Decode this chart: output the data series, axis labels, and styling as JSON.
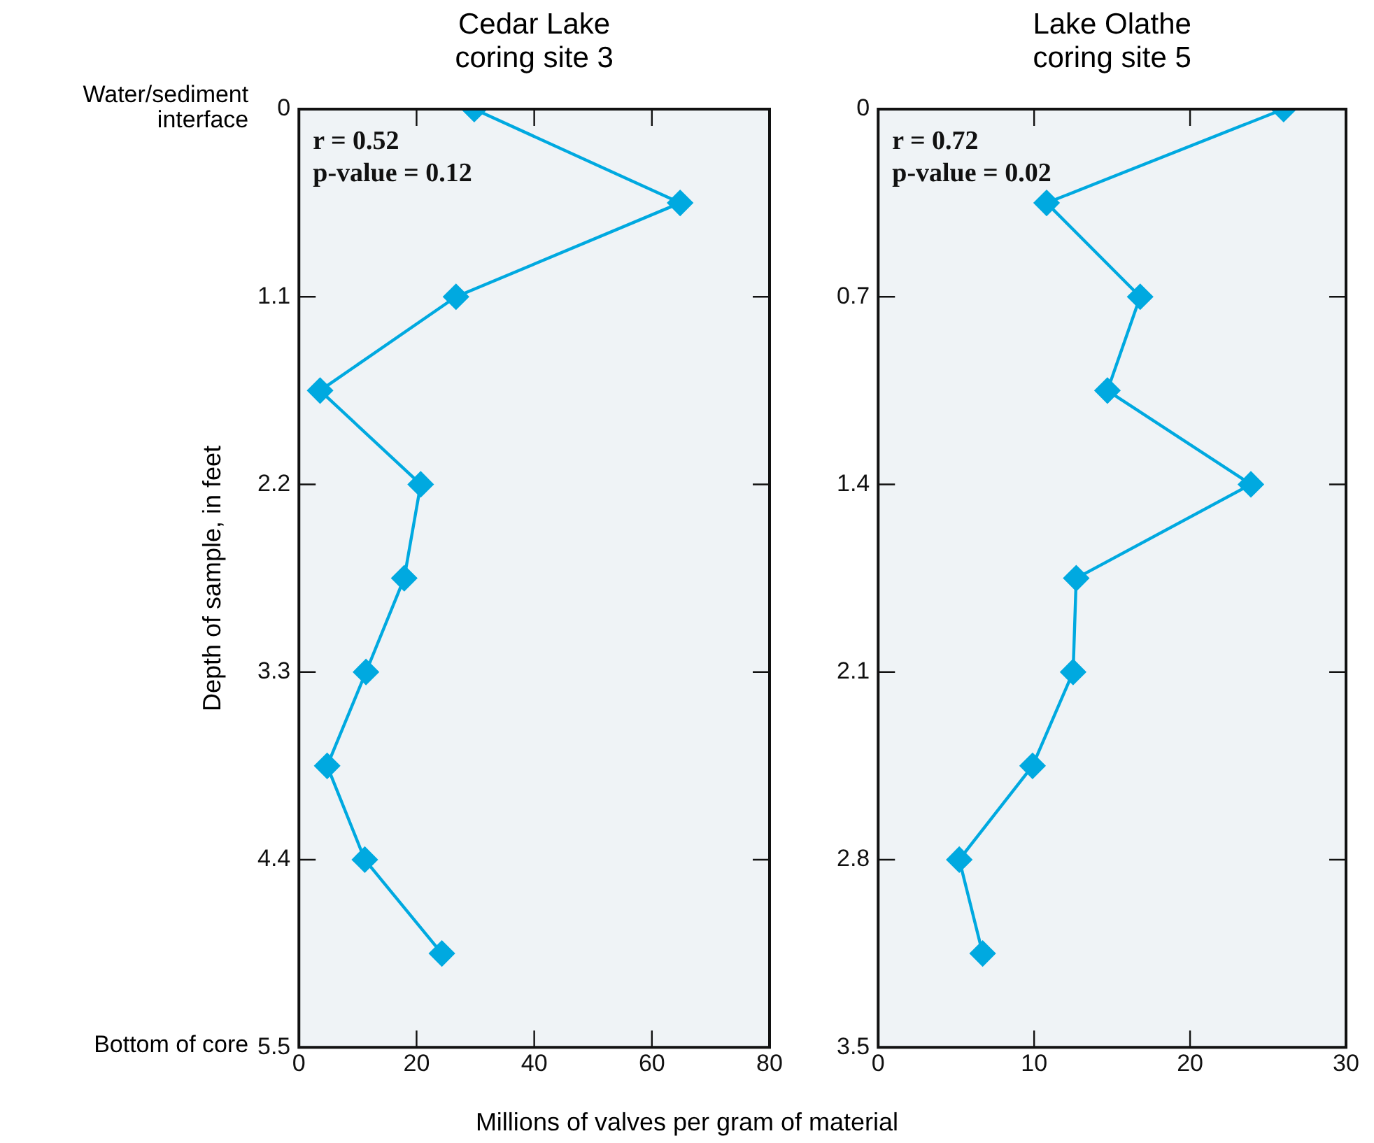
{
  "chart_data": [
    {
      "type": "line",
      "title": "Cedar Lake coring site 3",
      "ylabel": "Depth of sample, in feet",
      "xlabel": "Millions of valves per gram of material",
      "marker": "diamond",
      "grid": false,
      "legend": false,
      "xlim": [
        0,
        80
      ],
      "xticks": [
        0,
        20,
        40,
        60,
        80
      ],
      "ylim": [
        5.5,
        0
      ],
      "yticks": [
        0,
        1.1,
        2.2,
        3.3,
        4.4,
        5.5
      ],
      "series": [
        {
          "color": "#00a9e0",
          "x": [
            29.8,
            64.8,
            26.7,
            3.6,
            20.7,
            17.9,
            11.4,
            4.8,
            11.2,
            24.3
          ],
          "values": [
            0,
            0.55,
            1.1,
            1.65,
            2.2,
            2.75,
            3.3,
            3.85,
            4.4,
            4.95
          ]
        }
      ],
      "annotations": [
        "Water/sediment interface",
        "Bottom of core",
        "r = 0.52",
        "p-value = 0.12"
      ]
    },
    {
      "type": "line",
      "title": "Lake Olathe coring site 5",
      "marker": "diamond",
      "grid": false,
      "legend": false,
      "xlim": [
        0,
        30
      ],
      "xticks": [
        0,
        10,
        20,
        30
      ],
      "ylim": [
        3.5,
        0
      ],
      "yticks": [
        0,
        0.7,
        1.4,
        2.1,
        2.8,
        3.5
      ],
      "series": [
        {
          "color": "#00a9e0",
          "x": [
            26.0,
            10.8,
            16.8,
            14.7,
            23.9,
            12.7,
            12.5,
            9.9,
            5.2,
            6.7
          ],
          "values": [
            0,
            0.35,
            0.7,
            1.05,
            1.4,
            1.75,
            2.1,
            2.45,
            2.8,
            3.15
          ]
        }
      ],
      "annotations": [
        "r = 0.72",
        "p-value = 0.02"
      ]
    }
  ]
}
